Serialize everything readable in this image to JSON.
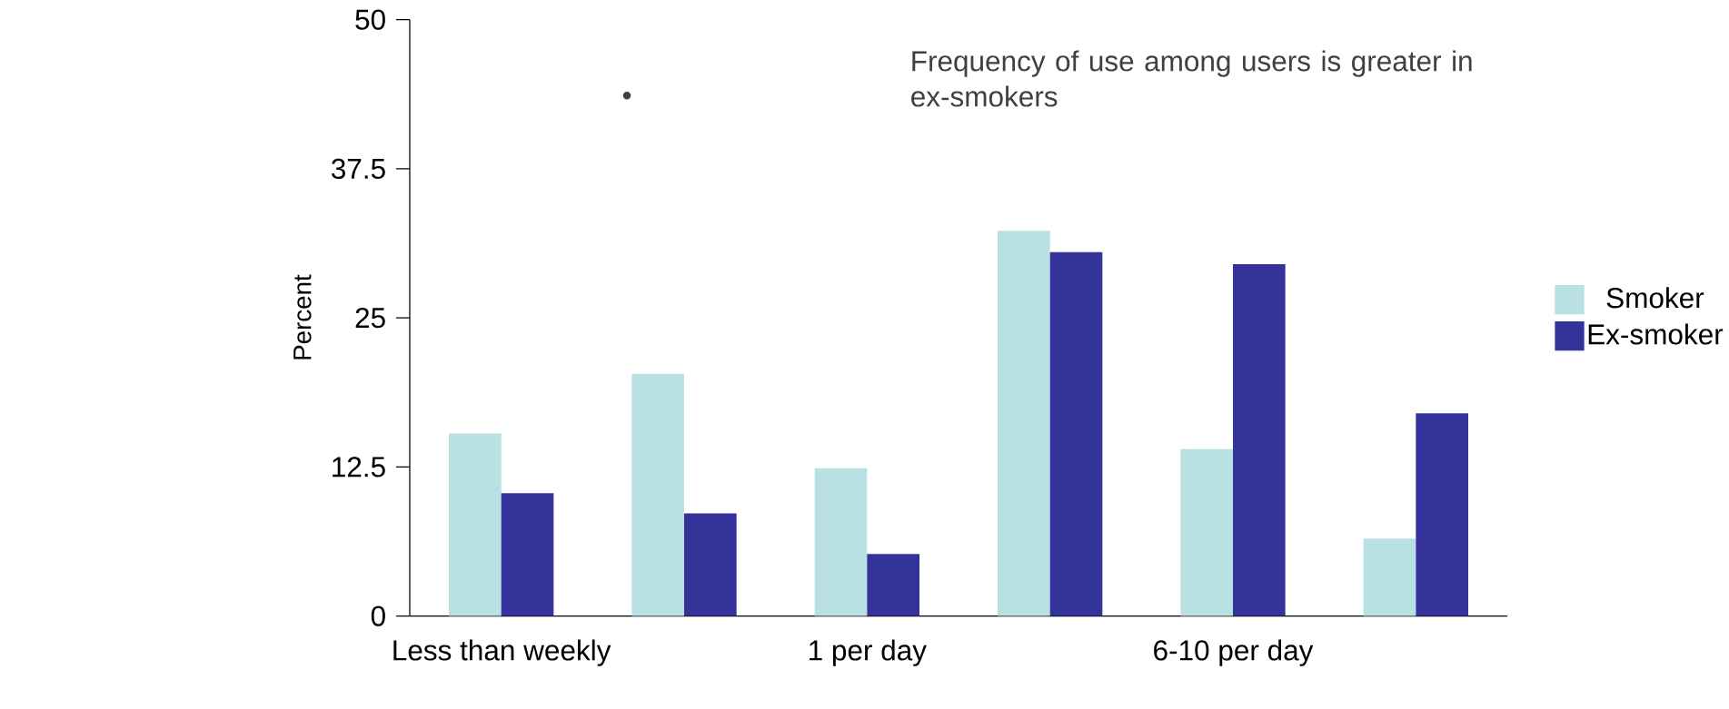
{
  "chart_data": {
    "type": "bar",
    "ylabel": "Percent",
    "categories": [
      "Less than weekly",
      null,
      "1 per day",
      null,
      "6-10 per day",
      null
    ],
    "series": [
      {
        "name": "Smoker",
        "color": "#b9e0e3",
        "values": [
          15.3,
          20.3,
          12.4,
          32.3,
          14.0,
          6.5
        ]
      },
      {
        "name": "Ex-smoker",
        "color": "#343399",
        "values": [
          10.3,
          8.6,
          5.2,
          30.5,
          29.5,
          17.0
        ]
      }
    ],
    "ylim": [
      0,
      50
    ],
    "yticks": [
      0,
      12.5,
      25,
      37.5,
      50
    ],
    "legend": "right",
    "grid": false,
    "annotations": [
      "Frequency of use among users is greater in ex-smokers"
    ]
  }
}
